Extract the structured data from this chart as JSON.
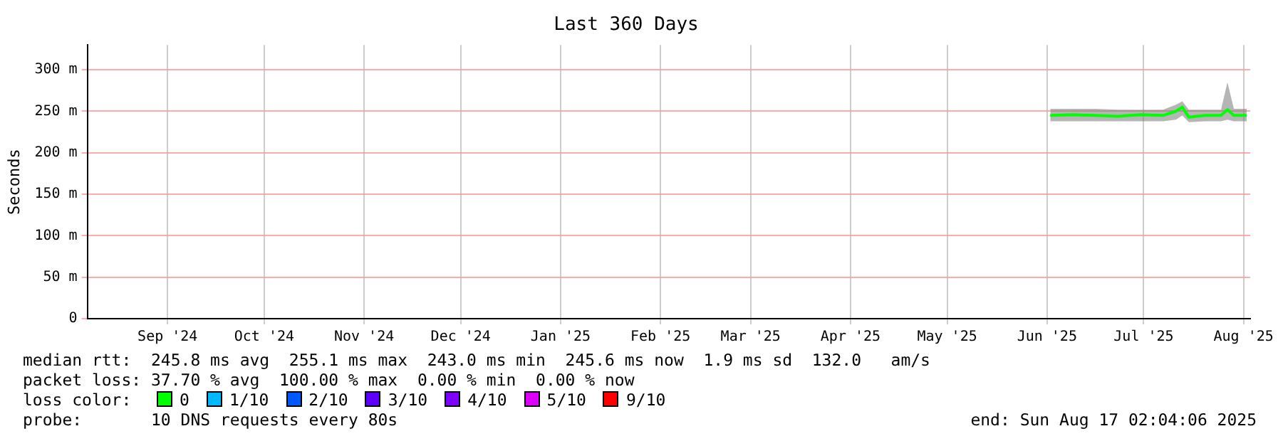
{
  "chart_data": {
    "type": "line",
    "title": "Last 360 Days",
    "ylabel": "Seconds",
    "legend_title": "loss color:",
    "legend": "bottom",
    "grid": true,
    "marker": "none",
    "xlim": [
      "2024-08-21T02:04",
      "2025-08-17T02:04"
    ],
    "xticks": [
      {
        "value": "2024-09-15",
        "label": "Sep '24"
      },
      {
        "value": "2024-10-15",
        "label": "Oct '24"
      },
      {
        "value": "2024-11-15",
        "label": "Nov '24"
      },
      {
        "value": "2024-12-15",
        "label": "Dec '24"
      },
      {
        "value": "2025-01-15",
        "label": "Jan '25"
      },
      {
        "value": "2025-02-15",
        "label": "Feb '25"
      },
      {
        "value": "2025-03-15",
        "label": "Mar '25"
      },
      {
        "value": "2025-04-15",
        "label": "Apr '25"
      },
      {
        "value": "2025-05-15",
        "label": "May '25"
      },
      {
        "value": "2025-06-15",
        "label": "Jun '25"
      },
      {
        "value": "2025-07-15",
        "label": "Jul '25"
      },
      {
        "value": "2025-08-15",
        "label": "Aug '25"
      }
    ],
    "ylim": [
      0,
      330
    ],
    "yticks": [
      0,
      {
        "value": 50,
        "label": "50 m"
      },
      {
        "value": 100,
        "label": "100 m"
      },
      {
        "value": 150,
        "label": "150 m"
      },
      {
        "value": 200,
        "label": "200 m"
      },
      {
        "value": 250,
        "label": "250 m"
      },
      {
        "value": 300,
        "label": "300 m"
      }
    ],
    "x": [
      "2025-06-16",
      "2025-06-23",
      "2025-06-30",
      "2025-07-07",
      "2025-07-14",
      "2025-07-21",
      "2025-07-25",
      "2025-07-27",
      "2025-07-29",
      "2025-08-03",
      "2025-08-08",
      "2025-08-10",
      "2025-08-12",
      "2025-08-16"
    ],
    "series": [
      {
        "name": "0",
        "color": "#00ff00",
        "values": [
          245,
          246,
          245,
          244,
          246,
          245,
          250,
          255,
          243,
          245,
          245,
          252,
          245,
          245
        ],
        "lower": [
          238,
          238,
          238,
          238,
          238,
          238,
          240,
          245,
          237,
          238,
          238,
          240,
          238,
          238
        ],
        "upper": [
          253,
          253,
          253,
          252,
          252,
          252,
          258,
          262,
          252,
          252,
          252,
          285,
          253,
          253
        ]
      },
      {
        "name": "1/10",
        "color": "#00b8ff",
        "values": [
          null,
          null,
          null,
          null,
          null,
          null,
          null,
          null,
          null,
          null,
          null,
          null,
          null,
          null
        ]
      },
      {
        "name": "2/10",
        "color": "#0059ff",
        "values": [
          null,
          null,
          null,
          null,
          null,
          null,
          null,
          null,
          null,
          null,
          null,
          null,
          null,
          null
        ]
      },
      {
        "name": "3/10",
        "color": "#5e00ff",
        "values": [
          null,
          null,
          null,
          null,
          null,
          null,
          null,
          null,
          null,
          null,
          null,
          null,
          null,
          null
        ]
      },
      {
        "name": "4/10",
        "color": "#7e00ff",
        "values": [
          null,
          null,
          null,
          null,
          null,
          null,
          null,
          null,
          null,
          null,
          null,
          null,
          null,
          null
        ]
      },
      {
        "name": "5/10",
        "color": "#dd00ff",
        "values": [
          null,
          null,
          null,
          null,
          null,
          null,
          null,
          null,
          null,
          null,
          null,
          null,
          null,
          null
        ]
      },
      {
        "name": "9/10",
        "color": "#ff0000",
        "values": [
          null,
          null,
          null,
          null,
          null,
          null,
          null,
          null,
          null,
          null,
          null,
          null,
          null,
          null
        ]
      }
    ],
    "annotations": [
      "median rtt:  245.8 ms avg  255.1 ms max  243.0 ms min  245.6 ms now  1.9 ms sd  132.0   am/s",
      "packet loss: 37.70 % avg  100.00 % max  0.00 % min  0.00 % now",
      "probe:       10 DNS requests every 80s",
      "end: Sun Aug 17 02:04:06 2025"
    ]
  }
}
